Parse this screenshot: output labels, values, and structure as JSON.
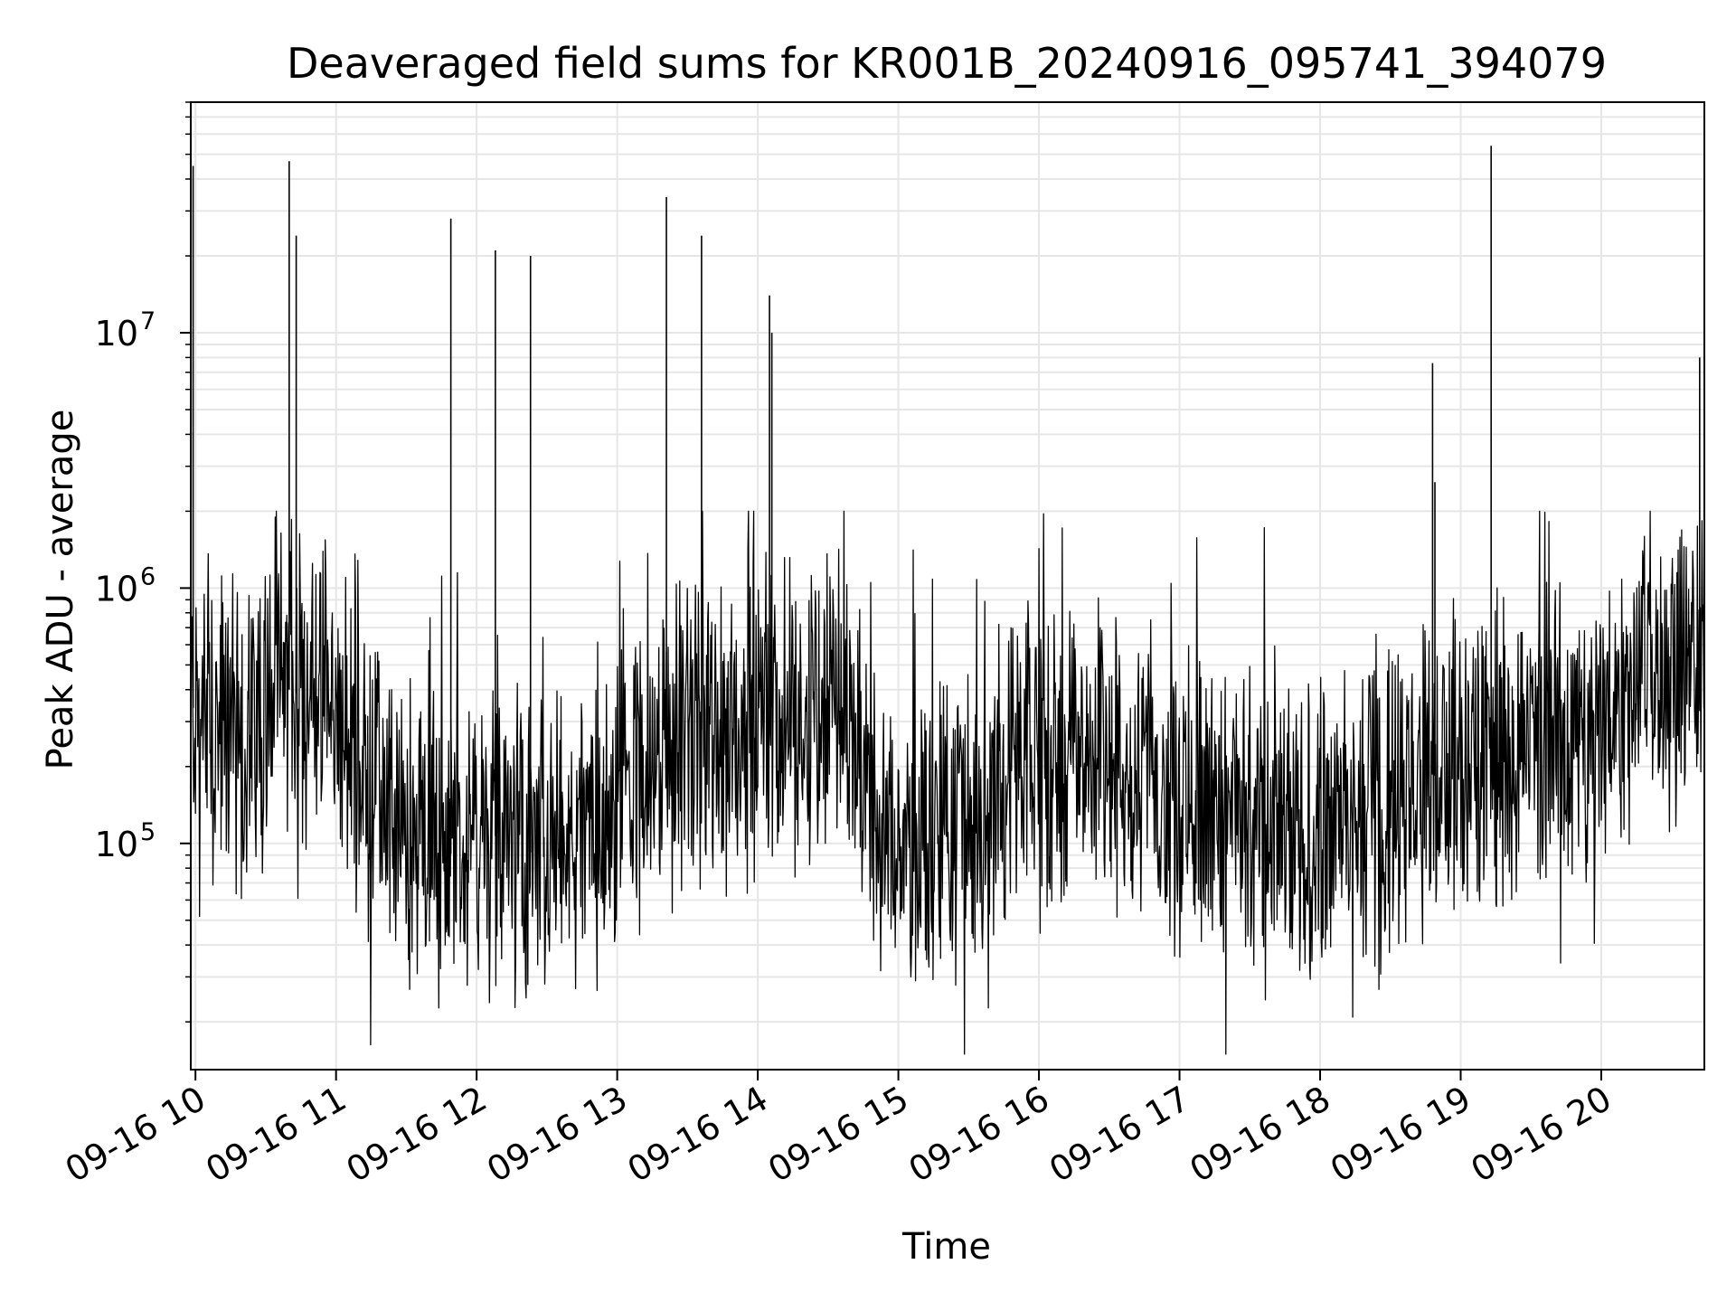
{
  "chart_data": {
    "type": "line",
    "title": "Deaveraged field sums for KR001B_20240916_095741_394079",
    "xlabel": "Time",
    "ylabel": "Peak ADU - average",
    "x_axis": {
      "kind": "datetime",
      "range": [
        "2024-09-16 09:58",
        "2024-09-16 20:44"
      ],
      "ticks": [
        "09-16 10",
        "09-16 11",
        "09-16 12",
        "09-16 13",
        "09-16 14",
        "09-16 15",
        "09-16 16",
        "09-16 17",
        "09-16 18",
        "09-16 19",
        "09-16 20"
      ]
    },
    "y_axis": {
      "scale": "log",
      "range": [
        13000,
        80000000
      ],
      "ticks": [
        {
          "base": "10",
          "exp": "5",
          "value": 100000
        },
        {
          "base": "10",
          "exp": "6",
          "value": 1000000
        },
        {
          "base": "10",
          "exp": "7",
          "value": 10000000
        }
      ]
    },
    "grid": true,
    "line_color": "#000000",
    "grid_color": "#e6e6e6",
    "series": [
      {
        "x": [
          "09:58",
          "10:05",
          "10:10",
          "10:15",
          "10:20",
          "10:25",
          "10:30",
          "10:35",
          "10:40",
          "10:45",
          "10:50",
          "10:55",
          "11:00",
          "11:05",
          "11:10",
          "11:15",
          "11:20",
          "11:25",
          "11:30",
          "11:35",
          "11:40",
          "11:45",
          "11:50",
          "11:55",
          "12:00",
          "12:05",
          "12:10",
          "12:15",
          "12:20",
          "12:25",
          "12:30",
          "12:35",
          "12:40",
          "12:45",
          "12:50",
          "12:55",
          "13:00",
          "13:05",
          "13:10",
          "13:15",
          "13:20",
          "13:25",
          "13:30",
          "13:35",
          "13:40",
          "13:45",
          "13:50",
          "13:55",
          "14:00",
          "14:05",
          "14:10",
          "14:15",
          "14:20",
          "14:25",
          "14:30",
          "14:35",
          "14:40",
          "14:45",
          "14:50",
          "14:55",
          "15:00",
          "15:05",
          "15:10",
          "15:15",
          "15:20",
          "15:25",
          "15:30",
          "15:35",
          "15:40",
          "15:45",
          "15:50",
          "15:55",
          "16:00",
          "16:05",
          "16:10",
          "16:15",
          "16:20",
          "16:25",
          "16:30",
          "16:35",
          "16:40",
          "16:45",
          "16:50",
          "16:55",
          "17:00",
          "17:05",
          "17:10",
          "17:15",
          "17:20",
          "17:25",
          "17:30",
          "17:35",
          "17:40",
          "17:45",
          "17:50",
          "17:55",
          "18:00",
          "18:05",
          "18:10",
          "18:15",
          "18:20",
          "18:25",
          "18:30",
          "18:35",
          "18:40",
          "18:45",
          "18:50",
          "18:55",
          "19:00",
          "19:05",
          "19:10",
          "19:15",
          "19:20",
          "19:25",
          "19:30",
          "19:35",
          "19:40",
          "19:45",
          "19:50",
          "19:55",
          "20:00",
          "20:05",
          "20:10",
          "20:15",
          "20:20",
          "20:25",
          "20:30",
          "20:35",
          "20:40",
          "20:44"
        ],
        "y": [
          350000,
          280000,
          250000,
          300000,
          260000,
          300000,
          380000,
          450000,
          400000,
          380000,
          420000,
          350000,
          300000,
          240000,
          200000,
          170000,
          140000,
          120000,
          110000,
          100000,
          105000,
          95000,
          90000,
          85000,
          100000,
          110000,
          105000,
          100000,
          95000,
          90000,
          100000,
          95000,
          90000,
          100000,
          110000,
          120000,
          140000,
          160000,
          170000,
          180000,
          200000,
          230000,
          260000,
          280000,
          270000,
          250000,
          280000,
          300000,
          320000,
          340000,
          350000,
          330000,
          320000,
          340000,
          360000,
          320000,
          250000,
          180000,
          120000,
          100000,
          95000,
          90000,
          100000,
          110000,
          120000,
          130000,
          140000,
          150000,
          160000,
          170000,
          180000,
          190000,
          200000,
          220000,
          230000,
          240000,
          250000,
          240000,
          230000,
          210000,
          200000,
          190000,
          180000,
          170000,
          160000,
          155000,
          150000,
          145000,
          140000,
          130000,
          120000,
          110000,
          105000,
          100000,
          100000,
          105000,
          110000,
          115000,
          120000,
          125000,
          130000,
          140000,
          150000,
          160000,
          170000,
          180000,
          190000,
          200000,
          210000,
          215000,
          220000,
          225000,
          230000,
          230000,
          235000,
          240000,
          245000,
          250000,
          255000,
          260000,
          280000,
          330000,
          430000,
          460000,
          470000,
          480000,
          490000,
          500000,
          500000,
          460000
        ]
      }
    ],
    "spikes": [
      {
        "x": "09:59",
        "y": 45000000
      },
      {
        "x": "10:40",
        "y": 47000000
      },
      {
        "x": "10:43",
        "y": 24000000
      },
      {
        "x": "11:49",
        "y": 28000000
      },
      {
        "x": "12:08",
        "y": 21000000
      },
      {
        "x": "12:23",
        "y": 20000000
      },
      {
        "x": "13:21",
        "y": 34000000
      },
      {
        "x": "13:36",
        "y": 24000000
      },
      {
        "x": "14:05",
        "y": 14000000
      },
      {
        "x": "14:06",
        "y": 10000000
      },
      {
        "x": "18:48",
        "y": 7600000
      },
      {
        "x": "18:49",
        "y": 2600000
      },
      {
        "x": "19:13",
        "y": 54000000
      },
      {
        "x": "20:42",
        "y": 8000000
      }
    ]
  }
}
